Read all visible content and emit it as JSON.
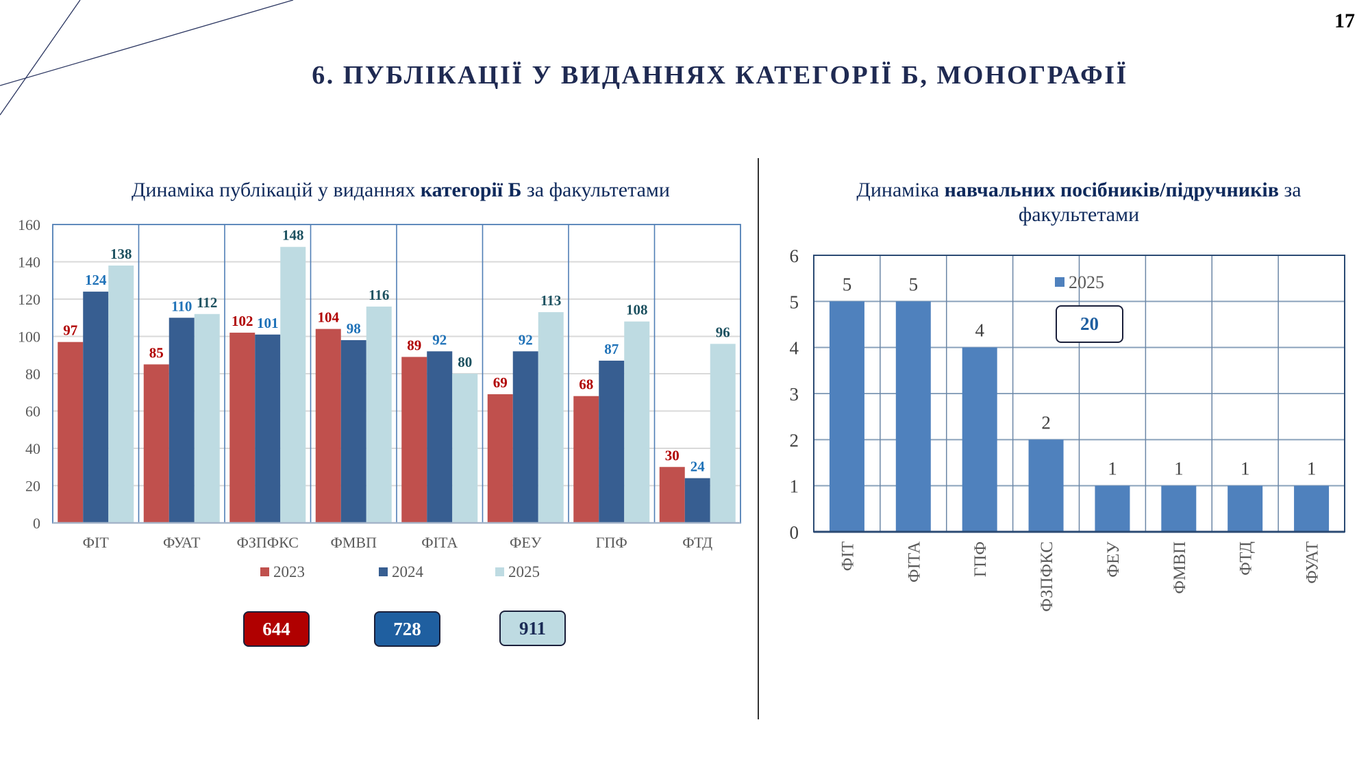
{
  "page": {
    "title": "6. ПУБЛІКАЦІЇ У ВИДАННЯХ КАТЕГОРІЇ Б, МОНОГРАФІЇ",
    "page_number": "17",
    "accent_color": "#1f2a52"
  },
  "left_chart": {
    "title_normal_1": "Динаміка публікацій у виданнях ",
    "title_bold": "категорії Б",
    "title_normal_2": " за факультетами",
    "totals": [
      {
        "label": "644",
        "series": "2023"
      },
      {
        "label": "728",
        "series": "2024"
      },
      {
        "label": "911",
        "series": "2025"
      }
    ]
  },
  "right_chart": {
    "title_normal_1": "Динаміка ",
    "title_bold": "навчальних посібників/підручників",
    "title_normal_2": " за факультетами",
    "total": "20"
  },
  "chart_data": [
    {
      "type": "bar",
      "title": "Динаміка публікацій у виданнях категорії Б за факультетами",
      "xlabel": "",
      "ylabel": "",
      "ylim": [
        0,
        160
      ],
      "yticks": [
        0,
        20,
        40,
        60,
        80,
        100,
        120,
        140,
        160
      ],
      "grid": true,
      "legend_position": "bottom",
      "categories": [
        "ФІТ",
        "ФУАТ",
        "ФЗПФКС",
        "ФМВП",
        "ФІТА",
        "ФЕУ",
        "ГПФ",
        "ФТД"
      ],
      "series": [
        {
          "name": "2023",
          "color": "#c0504d",
          "label_color": "#b00000",
          "values": [
            97,
            85,
            102,
            104,
            89,
            69,
            68,
            30
          ]
        },
        {
          "name": "2024",
          "color": "#375e91",
          "label_color": "#1f72b8",
          "values": [
            124,
            110,
            101,
            98,
            92,
            92,
            87,
            24
          ]
        },
        {
          "name": "2025",
          "color": "#bedbe2",
          "label_color": "#1d5160",
          "values": [
            138,
            112,
            148,
            116,
            80,
            113,
            108,
            96
          ]
        }
      ]
    },
    {
      "type": "bar",
      "title": "Динаміка навчальних посібників/підручників за факультетами",
      "xlabel": "",
      "ylabel": "",
      "ylim": [
        0,
        6
      ],
      "yticks": [
        0,
        1,
        2,
        3,
        4,
        5,
        6
      ],
      "grid": true,
      "legend_position": "top-center",
      "categories": [
        "ФІТ",
        "ФІТА",
        "ГПФ",
        "ФЗПФКС",
        "ФЕУ",
        "ФМВП",
        "ФТД",
        "ФУАТ"
      ],
      "series": [
        {
          "name": "2025",
          "color": "#4f81bd",
          "label_color": "#404040",
          "values": [
            5,
            5,
            4,
            2,
            1,
            1,
            1,
            1
          ]
        }
      ]
    }
  ]
}
